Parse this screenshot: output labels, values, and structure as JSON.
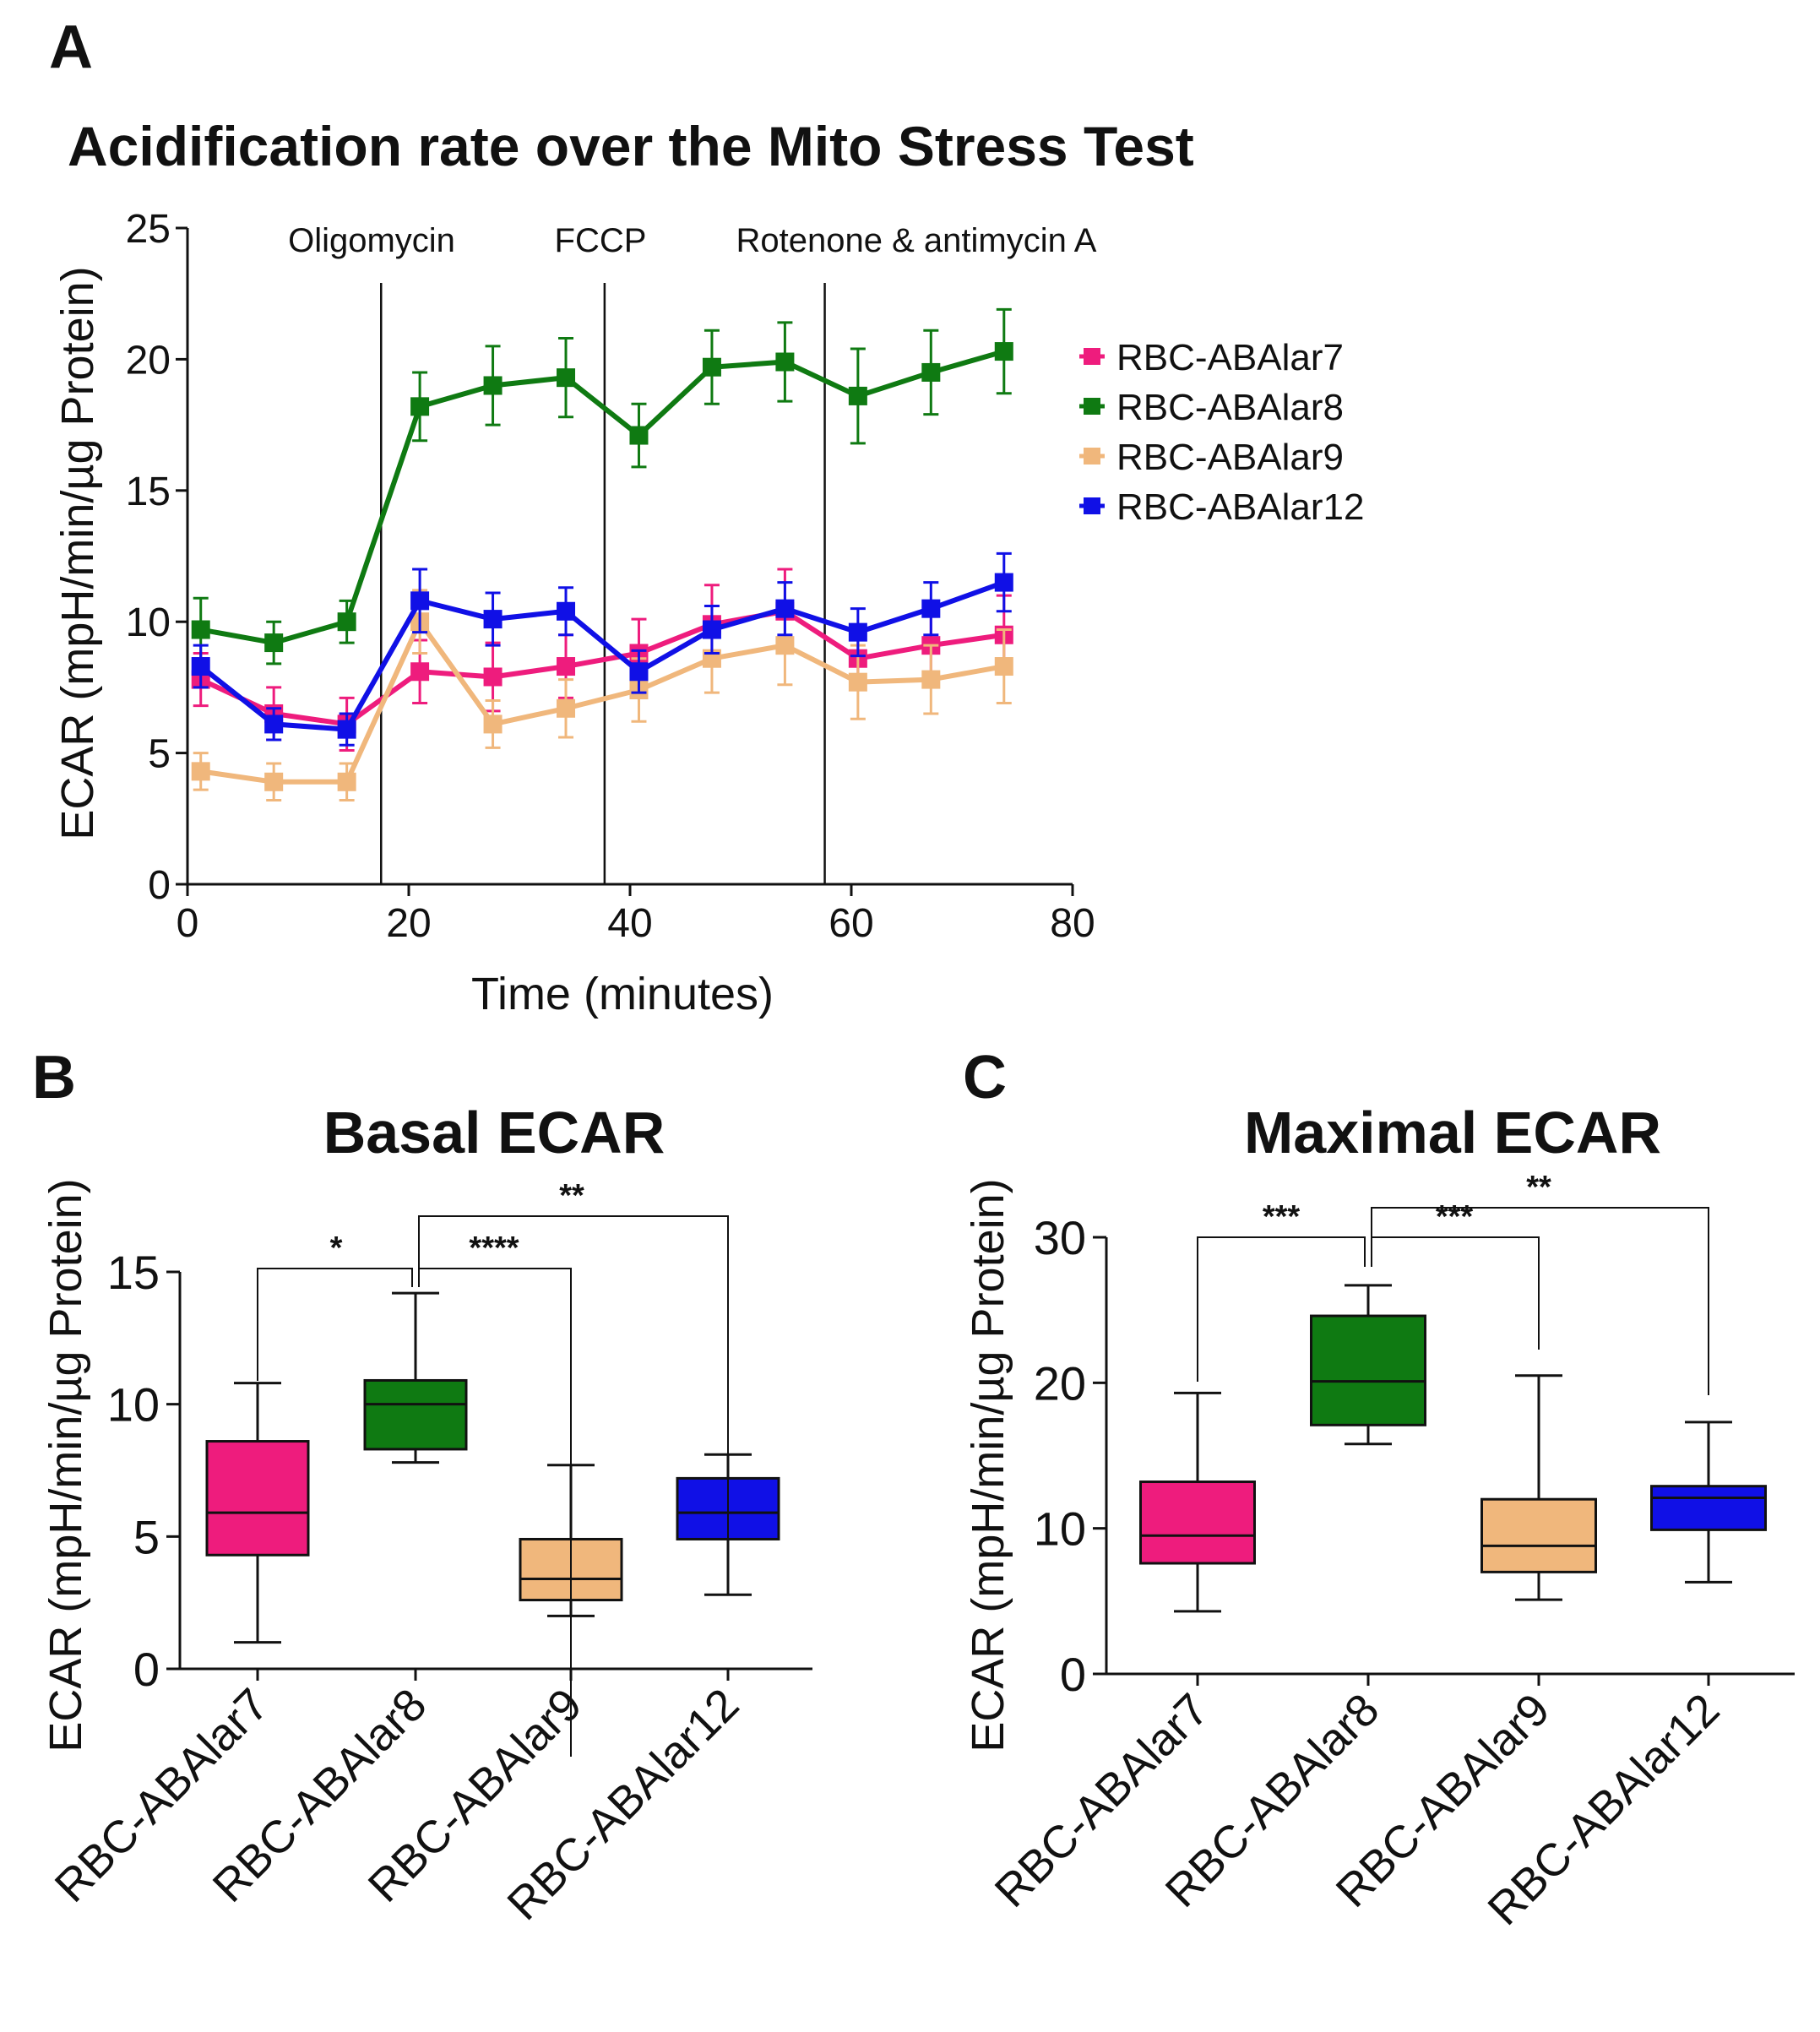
{
  "colors": {
    "RBC-ABAlar7": "#ee1c7d",
    "RBC-ABAlar8": "#0f7a12",
    "RBC-ABAlar9": "#f0b77c",
    "RBC-ABAlar12": "#1010e6",
    "axis": "#111111"
  },
  "chart_data": [
    {
      "panel": "A",
      "type": "line",
      "title": "Acidification rate over the Mito Stress Test",
      "xlabel": "Time (minutes)",
      "ylabel": "ECAR (mpH/min/µg Protein)",
      "xlim": [
        0,
        80
      ],
      "ylim": [
        0,
        25
      ],
      "xticks": [
        "0",
        "20",
        "40",
        "60",
        "80"
      ],
      "yticks": [
        "0",
        "5",
        "10",
        "15",
        "20",
        "25"
      ],
      "injections": [
        {
          "label": "Oligomycin",
          "x": 17.5
        },
        {
          "label": "FCCP",
          "x": 37.7
        },
        {
          "label": "Rotenone & antimycin A",
          "x": 57.6
        }
      ],
      "x": [
        1.2,
        7.8,
        14.4,
        21.0,
        27.6,
        34.2,
        40.8,
        47.4,
        54.0,
        60.6,
        67.2,
        73.8
      ],
      "series": [
        {
          "name": "RBC-ABAlar7",
          "values": [
            7.8,
            6.5,
            6.1,
            8.1,
            7.9,
            8.3,
            8.8,
            9.9,
            10.4,
            8.6,
            9.1,
            9.5
          ],
          "err": [
            1.0,
            1.0,
            1.0,
            1.2,
            1.3,
            1.2,
            1.3,
            1.5,
            1.6,
            1.2,
            1.3,
            1.5
          ]
        },
        {
          "name": "RBC-ABAlar8",
          "values": [
            9.7,
            9.2,
            10.0,
            18.2,
            19.0,
            19.3,
            17.1,
            19.7,
            19.9,
            18.6,
            19.5,
            20.3
          ],
          "err": [
            1.2,
            0.8,
            0.8,
            1.3,
            1.5,
            1.5,
            1.2,
            1.4,
            1.5,
            1.8,
            1.6,
            1.6
          ]
        },
        {
          "name": "RBC-ABAlar9",
          "values": [
            4.3,
            3.9,
            3.9,
            10.0,
            6.1,
            6.7,
            7.4,
            8.6,
            9.1,
            7.7,
            7.8,
            8.3
          ],
          "err": [
            0.7,
            0.7,
            0.7,
            1.2,
            0.9,
            1.1,
            1.2,
            1.3,
            1.5,
            1.4,
            1.3,
            1.4
          ]
        },
        {
          "name": "RBC-ABAlar12",
          "values": [
            8.3,
            6.1,
            5.9,
            10.8,
            10.1,
            10.4,
            8.1,
            9.7,
            10.5,
            9.6,
            10.5,
            11.5
          ],
          "err": [
            0.8,
            0.6,
            0.6,
            1.2,
            1.0,
            0.9,
            0.8,
            0.9,
            1.0,
            0.9,
            1.0,
            1.1
          ]
        }
      ]
    },
    {
      "panel": "B",
      "type": "box",
      "title": "Basal ECAR",
      "ylabel": "ECAR (mpH/min/µg Protein)",
      "ylim": [
        0,
        15
      ],
      "yticks": [
        "0",
        "5",
        "10",
        "15"
      ],
      "categories": [
        "RBC-ABAlar7",
        "RBC-ABAlar8",
        "RBC-ABAlar9",
        "RBC-ABAlar12"
      ],
      "boxes": [
        {
          "min": 1.0,
          "q1": 4.3,
          "median": 5.9,
          "q3": 8.6,
          "max": 10.8
        },
        {
          "min": 7.8,
          "q1": 8.3,
          "median": 10.0,
          "q3": 10.9,
          "max": 14.2
        },
        {
          "min": 2.0,
          "q1": 2.6,
          "median": 3.4,
          "q3": 4.9,
          "max": 7.7
        },
        {
          "min": 2.8,
          "q1": 4.9,
          "median": 5.9,
          "q3": 7.2,
          "max": 8.1
        }
      ],
      "comparisons": [
        {
          "from": 0,
          "to": 1,
          "label": "*"
        },
        {
          "from": 1,
          "to": 2,
          "label": "****"
        },
        {
          "from": 1,
          "to": 3,
          "label": "**"
        }
      ]
    },
    {
      "panel": "C",
      "type": "box",
      "title": "Maximal ECAR",
      "ylabel": "ECAR (mpH/min/µg Protein)",
      "ylim": [
        0,
        30
      ],
      "yticks": [
        "0",
        "10",
        "20",
        "30"
      ],
      "categories": [
        "RBC-ABAlar7",
        "RBC-ABAlar8",
        "RBC-ABAlar9",
        "RBC-ABAlar12"
      ],
      "boxes": [
        {
          "min": 4.3,
          "q1": 7.6,
          "median": 9.5,
          "q3": 13.2,
          "max": 19.3
        },
        {
          "min": 15.8,
          "q1": 17.1,
          "median": 20.1,
          "q3": 24.6,
          "max": 26.7
        },
        {
          "min": 5.1,
          "q1": 7.0,
          "median": 8.8,
          "q3": 12.0,
          "max": 20.5
        },
        {
          "min": 6.3,
          "q1": 9.9,
          "median": 12.1,
          "q3": 12.9,
          "max": 17.3
        }
      ],
      "comparisons": [
        {
          "from": 0,
          "to": 1,
          "label": "***"
        },
        {
          "from": 1,
          "to": 2,
          "label": "***"
        },
        {
          "from": 1,
          "to": 3,
          "label": "**"
        }
      ]
    }
  ]
}
